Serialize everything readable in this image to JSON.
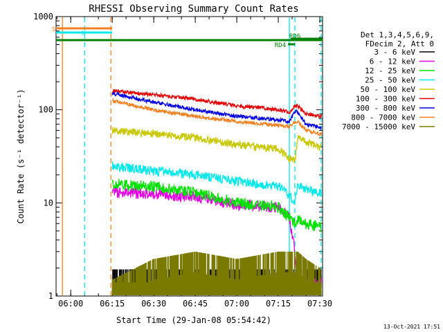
{
  "chart_data": {
    "type": "line",
    "title": "RHESSI Observing Summary Count Rates",
    "xlabel": "Start Time (29-Jan-08 05:54:42)",
    "ylabel": "Count Rate (s⁻¹ detector⁻¹)",
    "yscale": "log",
    "ylim": [
      1,
      1000
    ],
    "xlim": [
      "05:54:42",
      "07:31:00"
    ],
    "x_ticks": [
      "06:00",
      "06:15",
      "06:30",
      "06:45",
      "07:00",
      "07:15",
      "07:30"
    ],
    "y_ticks": [
      "1",
      "10",
      "100",
      "1000"
    ],
    "grid": false,
    "legend_placement": "right",
    "legend_header": [
      "Det 1,3,4,5,6,9,",
      "FDecim 2, Att 0"
    ],
    "data_gap": {
      "start": "05:54:42",
      "end": "06:15:00"
    },
    "series": [
      {
        "name": "3 - 6 keV",
        "color": "#000000",
        "x": [
          "06:15",
          "06:30",
          "06:45",
          "07:00",
          "07:15",
          "07:22",
          "07:25"
        ],
        "values": [
          1.5,
          1.5,
          1.5,
          1.5,
          1.5,
          1.5,
          1.5
        ]
      },
      {
        "name": "6 - 12 keV",
        "color": "#e000e0",
        "x": [
          "06:15",
          "06:30",
          "06:45",
          "07:00",
          "07:15",
          "07:19",
          "07:21",
          "07:22",
          "07:25",
          "07:30"
        ],
        "values": [
          13,
          12.5,
          11.5,
          9.5,
          9,
          7,
          3,
          1.5,
          1.4,
          1.4
        ]
      },
      {
        "name": "12 - 25 keV",
        "color": "#00e000",
        "x": [
          "06:15",
          "06:30",
          "06:45",
          "07:00",
          "07:15",
          "07:19",
          "07:21",
          "07:22",
          "07:25",
          "07:30"
        ],
        "values": [
          16,
          15,
          13,
          10,
          9,
          7,
          6,
          6.5,
          6,
          5.5
        ]
      },
      {
        "name": "25 - 50 keV",
        "color": "#00e8e8",
        "x": [
          "06:15",
          "06:30",
          "06:45",
          "07:00",
          "07:15",
          "07:19",
          "07:21",
          "07:22",
          "07:25",
          "07:30"
        ],
        "values": [
          25,
          22,
          20,
          17,
          15,
          12,
          10,
          16,
          14,
          13
        ]
      },
      {
        "name": "50 - 100 keV",
        "color": "#c8c800",
        "x": [
          "06:15",
          "06:30",
          "06:45",
          "07:00",
          "07:15",
          "07:19",
          "07:21",
          "07:22",
          "07:25",
          "07:30"
        ],
        "values": [
          60,
          55,
          50,
          42,
          38,
          30,
          28,
          50,
          45,
          40
        ]
      },
      {
        "name": "100 - 300 keV",
        "color": "#e00000",
        "x": [
          "06:15",
          "06:30",
          "06:45",
          "07:00",
          "07:15",
          "07:19",
          "07:21",
          "07:22",
          "07:25",
          "07:30"
        ],
        "values": [
          160,
          145,
          130,
          110,
          100,
          95,
          110,
          110,
          90,
          85
        ]
      },
      {
        "name": "300 - 800 keV",
        "color": "#0000e0",
        "x": [
          "06:15",
          "06:30",
          "06:45",
          "07:00",
          "07:15",
          "07:19",
          "07:21",
          "07:22",
          "07:25",
          "07:30"
        ],
        "values": [
          150,
          120,
          100,
          85,
          78,
          75,
          95,
          95,
          70,
          65
        ]
      },
      {
        "name": "800 - 7000 keV",
        "color": "#f08020",
        "x": [
          "06:15",
          "06:30",
          "06:45",
          "07:00",
          "07:15",
          "07:19",
          "07:21",
          "07:22",
          "07:25",
          "07:30"
        ],
        "values": [
          125,
          100,
          85,
          75,
          68,
          65,
          75,
          75,
          60,
          55
        ]
      },
      {
        "name": "7000 - 15000 keV",
        "color": "#7a7a00",
        "x": [
          "06:15",
          "06:30",
          "06:45",
          "07:00",
          "07:15",
          "07:22",
          "07:25",
          "07:30"
        ],
        "values": [
          1.5,
          2.5,
          3,
          2.5,
          3,
          3,
          2.5,
          2
        ]
      }
    ],
    "annotations": [
      {
        "label": "S",
        "color": "#f08020",
        "start": "05:54:42",
        "end": "06:15:00"
      },
      {
        "label": "N",
        "color": "#00e8e8",
        "start": "05:54:42",
        "end": "06:15:00"
      },
      {
        "label": "RD4",
        "color": "#008000",
        "start": "07:18:30",
        "end": "07:21:00"
      },
      {
        "label": "RD6",
        "color": "#008000",
        "start": "07:19:30",
        "end": "07:31:00"
      }
    ],
    "vertical_markers": [
      {
        "time": "05:57:00",
        "color": "#f08020",
        "style": "solid"
      },
      {
        "time": "06:05:00",
        "color": "#00e8e8",
        "style": "dashed"
      },
      {
        "time": "06:14:30",
        "color": "#f08020",
        "style": "dashed"
      },
      {
        "time": "07:19:00",
        "color": "#00e8e8",
        "style": "solid"
      },
      {
        "time": "07:21:00",
        "color": "#00e8e8",
        "style": "dashed"
      },
      {
        "time": "07:30:30",
        "color": "#00e8e8",
        "style": "dashed"
      }
    ]
  },
  "footer_timestamp": "13-Oct-2021 17:51"
}
